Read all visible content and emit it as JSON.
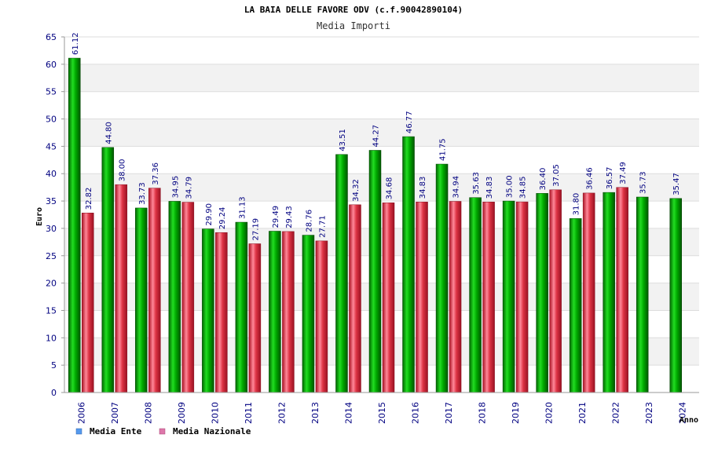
{
  "chart_data": {
    "type": "bar",
    "title": "LA BAIA DELLE FAVORE ODV (c.f.90042890104)",
    "subtitle": "Media Importi",
    "xlabel": "Anno",
    "ylabel": "Euro",
    "ylim": [
      0,
      65
    ],
    "yticks": [
      0,
      5,
      10,
      15,
      20,
      25,
      30,
      35,
      40,
      45,
      50,
      55,
      60,
      65
    ],
    "grid": true,
    "legend_position": "bottom-left",
    "categories": [
      "2006",
      "2007",
      "2008",
      "2009",
      "2010",
      "2011",
      "2012",
      "2013",
      "2014",
      "2015",
      "2016",
      "2017",
      "2018",
      "2019",
      "2020",
      "2021",
      "2022",
      "2023",
      "2024"
    ],
    "series": [
      {
        "name": "Media Ente",
        "color": "#00aa00",
        "legend_color": "#5599ee",
        "values": [
          61.12,
          44.8,
          33.73,
          34.95,
          29.9,
          31.13,
          29.49,
          28.76,
          43.51,
          44.27,
          46.77,
          41.75,
          35.63,
          35.0,
          36.4,
          31.8,
          36.57,
          35.73,
          35.47
        ],
        "labels": [
          "61.12",
          "44.80",
          "33.73",
          "34.95",
          "29.90",
          "31.13",
          "29.49",
          "28.76",
          "43.51",
          "44.27",
          "46.77",
          "41.75",
          "35.63",
          "35.00",
          "36.40",
          "31.80",
          "36.57",
          "35.73",
          "35.47"
        ]
      },
      {
        "name": "Media Nazionale",
        "color": "#dd2233",
        "legend_color": "#dd77aa",
        "values": [
          32.82,
          38.0,
          37.36,
          34.79,
          29.24,
          27.19,
          29.43,
          27.71,
          34.32,
          34.68,
          34.83,
          34.94,
          34.83,
          34.85,
          37.05,
          36.46,
          37.49,
          null,
          null
        ],
        "labels": [
          "32.82",
          "38.00",
          "37.36",
          "34.79",
          "29.24",
          "27.19",
          "29.43",
          "27.71",
          "34.32",
          "34.68",
          "34.83",
          "34.94",
          "34.83",
          "34.85",
          "37.05",
          "36.46",
          "37.49",
          null,
          null
        ]
      }
    ]
  }
}
